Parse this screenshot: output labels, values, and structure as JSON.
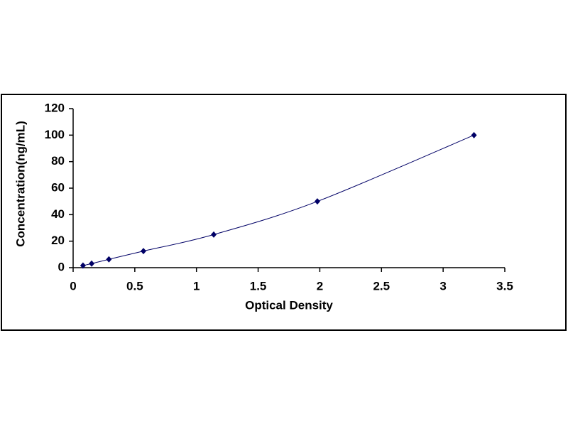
{
  "chart_data": {
    "type": "scatter",
    "x_label": "Optical Density",
    "y_label": "Concentration(ng/mL)",
    "series": [
      {
        "color": "#000066",
        "x": [
          0.08,
          0.15,
          0.29,
          0.57,
          1.14,
          1.98,
          3.25
        ],
        "values": [
          1.6,
          3.1,
          6.3,
          12.5,
          25,
          50,
          100
        ]
      }
    ],
    "xlim": [
      0,
      3.5
    ],
    "xticks": [
      0,
      0.5,
      1,
      1.5,
      2,
      2.5,
      3,
      3.5
    ],
    "ylim": [
      0,
      120
    ],
    "yticks": [
      0,
      20,
      40,
      60,
      80,
      100,
      120
    ],
    "grid": false,
    "smooth_line": true
  }
}
